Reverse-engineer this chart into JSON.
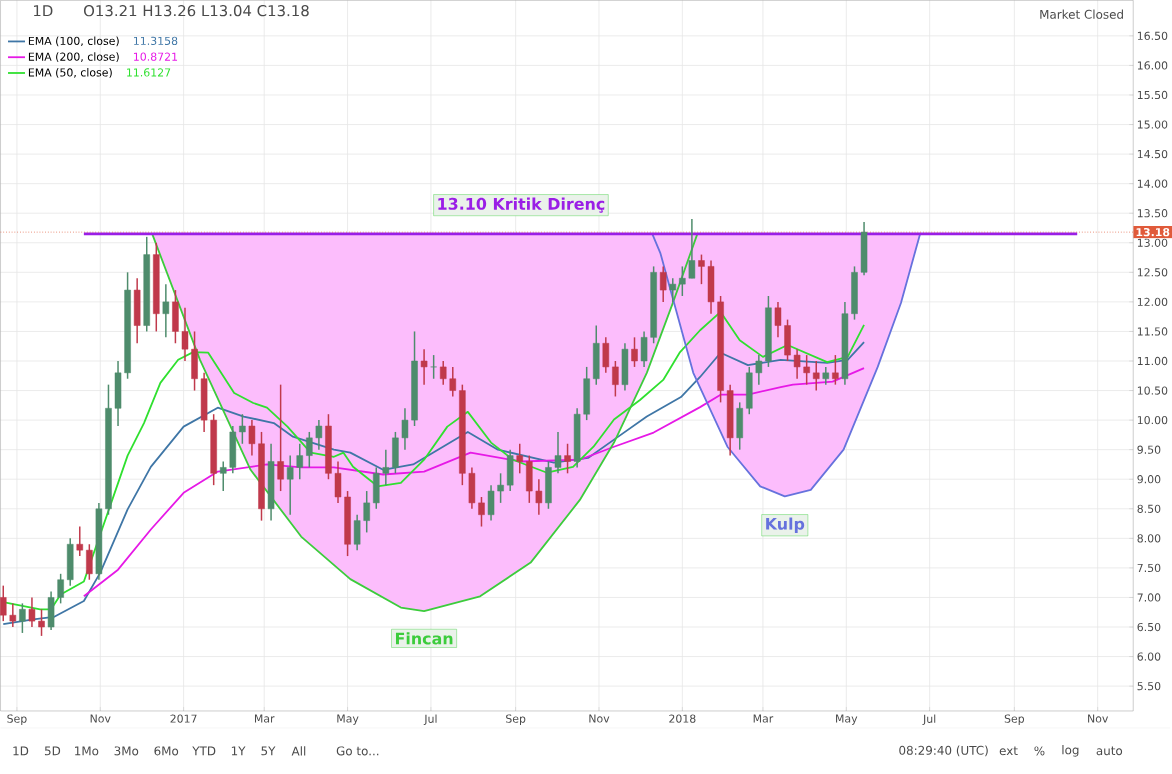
{
  "chart_data": {
    "type": "candlestick",
    "title": "1D",
    "subtitle": "O13.21  H13.26  L13.04  C13.18",
    "x": [
      "2016-08-22",
      "2016-08-29",
      "2016-09-05",
      "2016-09-12",
      "2016-09-19",
      "2016-09-26",
      "2016-10-03",
      "2016-10-10",
      "2016-10-17",
      "2016-10-24",
      "2016-10-31",
      "2016-11-07",
      "2016-11-14",
      "2016-11-21",
      "2016-11-28",
      "2016-12-05",
      "2016-12-12",
      "2016-12-19",
      "2016-12-26",
      "2017-01-02",
      "2017-01-09",
      "2017-01-16",
      "2017-01-23",
      "2017-01-30",
      "2017-02-06",
      "2017-02-13",
      "2017-02-20",
      "2017-02-27",
      "2017-03-06",
      "2017-03-13",
      "2017-03-20",
      "2017-03-27",
      "2017-04-03",
      "2017-04-10",
      "2017-04-17",
      "2017-04-24",
      "2017-05-01",
      "2017-05-08",
      "2017-05-15",
      "2017-05-22",
      "2017-05-29",
      "2017-06-05",
      "2017-06-12",
      "2017-06-19",
      "2017-06-26",
      "2017-07-03",
      "2017-07-10",
      "2017-07-17",
      "2017-07-24",
      "2017-07-31",
      "2017-08-07",
      "2017-08-14",
      "2017-08-21",
      "2017-08-28",
      "2017-09-04",
      "2017-09-11",
      "2017-09-18",
      "2017-09-25",
      "2017-10-02",
      "2017-10-09",
      "2017-10-16",
      "2017-10-23",
      "2017-10-30",
      "2017-11-06",
      "2017-11-13",
      "2017-11-20",
      "2017-11-27",
      "2017-12-04",
      "2017-12-11",
      "2017-12-18",
      "2017-12-25",
      "2018-01-01",
      "2018-01-08",
      "2018-01-15",
      "2018-01-22",
      "2018-01-29",
      "2018-02-05",
      "2018-02-12",
      "2018-02-19",
      "2018-02-26",
      "2018-03-05",
      "2018-03-12",
      "2018-03-19",
      "2018-03-26",
      "2018-04-02",
      "2018-04-09",
      "2018-04-16",
      "2018-04-23",
      "2018-04-30",
      "2018-05-07",
      "2018-05-14"
    ],
    "ohlc": [
      [
        7.0,
        7.2,
        6.6,
        6.7
      ],
      [
        6.7,
        6.9,
        6.5,
        6.6
      ],
      [
        6.6,
        6.9,
        6.4,
        6.8
      ],
      [
        6.8,
        7.0,
        6.5,
        6.6
      ],
      [
        6.6,
        6.8,
        6.35,
        6.5
      ],
      [
        6.5,
        7.1,
        6.45,
        7.0
      ],
      [
        7.0,
        7.4,
        6.9,
        7.3
      ],
      [
        7.3,
        8.0,
        7.2,
        7.9
      ],
      [
        7.9,
        8.2,
        7.7,
        7.8
      ],
      [
        7.8,
        7.9,
        7.3,
        7.4
      ],
      [
        7.4,
        8.6,
        7.3,
        8.5
      ],
      [
        8.5,
        10.6,
        8.4,
        10.2
      ],
      [
        10.2,
        11.0,
        9.9,
        10.8
      ],
      [
        10.8,
        12.5,
        10.7,
        12.2
      ],
      [
        12.2,
        12.4,
        11.3,
        11.6
      ],
      [
        11.6,
        13.1,
        11.5,
        12.8
      ],
      [
        12.8,
        13.0,
        11.5,
        11.8
      ],
      [
        11.8,
        12.3,
        11.4,
        12.0
      ],
      [
        12.0,
        12.2,
        11.3,
        11.5
      ],
      [
        11.5,
        11.9,
        11.0,
        11.2
      ],
      [
        11.2,
        11.5,
        10.5,
        10.7
      ],
      [
        10.7,
        10.8,
        9.8,
        10.0
      ],
      [
        10.0,
        10.1,
        8.9,
        9.1
      ],
      [
        9.1,
        9.3,
        8.8,
        9.2
      ],
      [
        9.2,
        9.9,
        9.1,
        9.8
      ],
      [
        9.8,
        10.1,
        9.6,
        9.9
      ],
      [
        9.9,
        10.0,
        9.4,
        9.6
      ],
      [
        9.6,
        9.8,
        8.3,
        8.5
      ],
      [
        8.5,
        9.6,
        8.3,
        9.3
      ],
      [
        9.3,
        10.6,
        8.8,
        9.0
      ],
      [
        9.0,
        9.4,
        8.4,
        9.2
      ],
      [
        9.2,
        9.6,
        9.0,
        9.4
      ],
      [
        9.4,
        9.8,
        9.2,
        9.7
      ],
      [
        9.7,
        10.0,
        9.5,
        9.9
      ],
      [
        9.9,
        10.1,
        9.0,
        9.1
      ],
      [
        9.1,
        9.3,
        8.6,
        8.7
      ],
      [
        8.7,
        8.8,
        7.7,
        7.9
      ],
      [
        7.9,
        8.4,
        7.8,
        8.3
      ],
      [
        8.3,
        8.8,
        8.1,
        8.6
      ],
      [
        8.6,
        9.2,
        8.5,
        9.1
      ],
      [
        9.1,
        9.5,
        8.9,
        9.2
      ],
      [
        9.2,
        9.8,
        9.1,
        9.7
      ],
      [
        9.7,
        10.2,
        9.5,
        10.0
      ],
      [
        10.0,
        11.5,
        9.9,
        11.0
      ],
      [
        11.0,
        11.2,
        10.6,
        10.9
      ],
      [
        10.9,
        11.1,
        10.7,
        10.9
      ],
      [
        10.9,
        11.0,
        10.6,
        10.7
      ],
      [
        10.7,
        10.9,
        10.4,
        10.5
      ],
      [
        10.5,
        10.6,
        8.9,
        9.1
      ],
      [
        9.1,
        9.2,
        8.5,
        8.6
      ],
      [
        8.6,
        8.7,
        8.2,
        8.4
      ],
      [
        8.4,
        8.9,
        8.3,
        8.8
      ],
      [
        8.8,
        9.1,
        8.6,
        8.9
      ],
      [
        8.9,
        9.5,
        8.8,
        9.4
      ],
      [
        9.4,
        9.6,
        9.1,
        9.3
      ],
      [
        9.3,
        9.4,
        8.6,
        8.8
      ],
      [
        8.8,
        9.0,
        8.4,
        8.6
      ],
      [
        8.6,
        9.3,
        8.5,
        9.2
      ],
      [
        9.2,
        9.8,
        9.1,
        9.4
      ],
      [
        9.4,
        9.6,
        9.1,
        9.3
      ],
      [
        9.3,
        10.2,
        9.2,
        10.1
      ],
      [
        10.1,
        10.9,
        10.0,
        10.7
      ],
      [
        10.7,
        11.6,
        10.6,
        11.3
      ],
      [
        11.3,
        11.4,
        10.8,
        10.9
      ],
      [
        10.9,
        11.0,
        10.4,
        10.6
      ],
      [
        10.6,
        11.3,
        10.5,
        11.2
      ],
      [
        11.2,
        11.4,
        10.9,
        11.0
      ],
      [
        11.0,
        11.5,
        10.9,
        11.4
      ],
      [
        11.4,
        12.6,
        11.3,
        12.5
      ],
      [
        12.5,
        12.6,
        12.0,
        12.2
      ],
      [
        12.2,
        12.4,
        12.0,
        12.3
      ],
      [
        12.3,
        12.6,
        12.1,
        12.4
      ],
      [
        12.4,
        13.4,
        12.4,
        12.7
      ],
      [
        12.7,
        12.8,
        12.3,
        12.6
      ],
      [
        12.6,
        12.7,
        11.8,
        12.0
      ],
      [
        12.0,
        12.1,
        10.3,
        10.5
      ],
      [
        10.5,
        10.6,
        9.4,
        9.7
      ],
      [
        9.7,
        10.3,
        9.5,
        10.2
      ],
      [
        10.2,
        10.9,
        10.1,
        10.8
      ],
      [
        10.8,
        11.1,
        10.6,
        11.0
      ],
      [
        11.0,
        12.1,
        10.9,
        11.9
      ],
      [
        11.9,
        12.0,
        11.4,
        11.6
      ],
      [
        11.6,
        11.7,
        11.0,
        11.1
      ],
      [
        11.1,
        11.2,
        10.7,
        10.9
      ],
      [
        10.9,
        11.1,
        10.6,
        10.8
      ],
      [
        10.8,
        11.0,
        10.5,
        10.7
      ],
      [
        10.7,
        10.9,
        10.6,
        10.8
      ],
      [
        10.8,
        11.1,
        10.6,
        10.7
      ],
      [
        10.7,
        12.0,
        10.6,
        11.8
      ],
      [
        11.8,
        12.6,
        11.7,
        12.5
      ],
      [
        12.5,
        13.35,
        12.45,
        13.18
      ]
    ],
    "series": [
      {
        "name": "EMA (100, close)",
        "type": "line",
        "color": "#3f76a6",
        "x": [
          "2016-08-22",
          "2016-09-13",
          "2016-09-28",
          "2016-10-20",
          "2016-11-01",
          "2016-11-21",
          "2016-12-08",
          "2017-01-01",
          "2017-01-26",
          "2017-02-14",
          "2017-03-08",
          "2017-03-22",
          "2017-04-21",
          "2017-05-03",
          "2017-05-27",
          "2017-06-18",
          "2017-07-28",
          "2017-08-19",
          "2017-09-29",
          "2017-10-24",
          "2017-11-12",
          "2017-12-06",
          "2017-12-31",
          "2018-01-14",
          "2018-01-29",
          "2018-02-18",
          "2018-03-14",
          "2018-04-17",
          "2018-05-02",
          "2018-05-14"
        ],
        "values": [
          6.55,
          6.63,
          6.67,
          6.94,
          7.42,
          8.49,
          9.21,
          9.89,
          10.21,
          10.06,
          9.95,
          9.72,
          9.5,
          9.45,
          9.16,
          9.25,
          9.8,
          9.5,
          9.28,
          9.36,
          9.67,
          10.06,
          10.39,
          10.73,
          11.14,
          10.93,
          11.02,
          10.97,
          11.02,
          11.32
        ]
      },
      {
        "name": "EMA (200, close)",
        "type": "line",
        "color": "#e619e6",
        "x": [
          "2016-10-20",
          "2016-11-14",
          "2016-12-08",
          "2017-01-01",
          "2017-01-26",
          "2017-03-03",
          "2017-03-28",
          "2017-04-21",
          "2017-05-27",
          "2017-06-26",
          "2017-07-30",
          "2017-09-05",
          "2017-10-18",
          "2017-11-12",
          "2017-12-11",
          "2018-01-14",
          "2018-01-29",
          "2018-02-18",
          "2018-03-14",
          "2018-03-23",
          "2018-04-21",
          "2018-05-14"
        ],
        "values": [
          7.02,
          7.47,
          8.15,
          8.77,
          9.13,
          9.25,
          9.2,
          9.2,
          9.08,
          9.13,
          9.45,
          9.3,
          9.33,
          9.55,
          9.79,
          10.22,
          10.43,
          10.43,
          10.56,
          10.6,
          10.65,
          10.88
        ]
      },
      {
        "name": "EMA (50, close)",
        "type": "line",
        "color": "#2fe02f",
        "x": [
          "2016-08-22",
          "2016-09-18",
          "2016-09-26",
          "2016-10-03",
          "2016-10-20",
          "2016-11-09",
          "2016-11-21",
          "2016-12-03",
          "2016-12-15",
          "2016-12-28",
          "2017-01-08",
          "2017-01-19",
          "2017-02-07",
          "2017-02-21",
          "2017-03-03",
          "2017-03-18",
          "2017-04-04",
          "2017-04-21",
          "2017-04-28",
          "2017-05-05",
          "2017-05-23",
          "2017-06-09",
          "2017-06-26",
          "2017-07-13",
          "2017-07-28",
          "2017-08-14",
          "2017-08-30",
          "2017-09-24",
          "2017-10-13",
          "2017-10-28",
          "2017-11-12",
          "2017-12-01",
          "2017-12-18",
          "2017-12-30",
          "2018-01-14",
          "2018-01-29",
          "2018-02-12",
          "2018-03-01",
          "2018-03-19",
          "2018-04-17",
          "2018-05-02",
          "2018-05-14"
        ],
        "values": [
          6.92,
          6.8,
          6.8,
          7.05,
          7.27,
          8.6,
          9.4,
          9.95,
          10.63,
          11.02,
          11.15,
          11.14,
          10.46,
          10.29,
          10.21,
          9.89,
          9.45,
          9.38,
          9.45,
          9.21,
          8.88,
          8.94,
          9.33,
          9.89,
          10.14,
          9.62,
          9.33,
          9.11,
          9.21,
          9.55,
          10.01,
          10.34,
          10.68,
          11.14,
          11.52,
          11.83,
          11.35,
          11.07,
          11.27,
          10.98,
          11.07,
          11.61
        ]
      },
      {
        "name": "Fincan",
        "type": "line",
        "color": "#3ccc3c",
        "x": [
          "2016-12-09",
          "2017-01-13",
          "2017-02-19",
          "2017-03-28",
          "2017-05-03",
          "2017-06-09",
          "2017-06-26",
          "2017-08-06",
          "2017-09-12",
          "2017-10-18",
          "2017-11-12",
          "2017-12-06",
          "2017-12-25",
          "2018-01-12"
        ],
        "values": [
          13.15,
          11.02,
          9.16,
          8.03,
          7.31,
          6.83,
          6.77,
          7.02,
          7.59,
          8.65,
          9.62,
          10.8,
          11.98,
          13.15
        ]
      },
      {
        "name": "Kulp",
        "type": "line",
        "color": "#6672dd",
        "x": [
          "2017-12-10",
          "2017-12-16",
          "2018-01-09",
          "2018-02-03",
          "2018-02-27",
          "2018-03-17",
          "2018-04-05",
          "2018-04-29",
          "2018-05-24",
          "2018-06-10",
          "2018-06-24"
        ],
        "values": [
          13.15,
          12.82,
          10.8,
          9.55,
          8.88,
          8.71,
          8.82,
          9.5,
          10.9,
          11.98,
          13.15
        ]
      },
      {
        "name": "13.10 Kritik Direnç",
        "type": "line",
        "color": "#9a1ee6",
        "x": [
          "2016-10-20",
          "2018-10-17"
        ],
        "values": [
          13.15,
          13.15
        ]
      }
    ],
    "xlim": [
      "2016-08-20",
      "2018-11-27"
    ],
    "xticks": [
      {
        "value": "2016-09-01",
        "label": "Sep"
      },
      {
        "value": "2016-11-01",
        "label": "Nov"
      },
      {
        "value": "2017-01-01",
        "label": "2017"
      },
      {
        "value": "2017-03-01",
        "label": "Mar"
      },
      {
        "value": "2017-05-01",
        "label": "May"
      },
      {
        "value": "2017-07-01",
        "label": "Jul"
      },
      {
        "value": "2017-09-01",
        "label": "Sep"
      },
      {
        "value": "2017-11-01",
        "label": "Nov"
      },
      {
        "value": "2018-01-01",
        "label": "2018"
      },
      {
        "value": "2018-03-01",
        "label": "Mar"
      },
      {
        "value": "2018-05-01",
        "label": "May"
      },
      {
        "value": "2018-07-01",
        "label": "Jul"
      },
      {
        "value": "2018-09-01",
        "label": "Sep"
      },
      {
        "value": "2018-11-01",
        "label": "Nov"
      }
    ],
    "ylim": [
      5.08,
      17.1
    ],
    "yticks": [
      {
        "value": 5.5,
        "label": "5.50"
      },
      {
        "value": 6,
        "label": "6.00"
      },
      {
        "value": 6.5,
        "label": "6.50"
      },
      {
        "value": 7,
        "label": "7.00"
      },
      {
        "value": 7.5,
        "label": "7.50"
      },
      {
        "value": 8,
        "label": "8.00"
      },
      {
        "value": 8.5,
        "label": "8.50"
      },
      {
        "value": 9,
        "label": "9.00"
      },
      {
        "value": 9.5,
        "label": "9.50"
      },
      {
        "value": 10,
        "label": "10.00"
      },
      {
        "value": 10.5,
        "label": "10.50"
      },
      {
        "value": 11,
        "label": "11.00"
      },
      {
        "value": 11.5,
        "label": "11.50"
      },
      {
        "value": 12,
        "label": "12.00"
      },
      {
        "value": 12.5,
        "label": "12.50"
      },
      {
        "value": 13,
        "label": "13.00"
      },
      {
        "value": 13.5,
        "label": "13.50"
      },
      {
        "value": 14,
        "label": "14.00"
      },
      {
        "value": 14.5,
        "label": "14.50"
      },
      {
        "value": 15,
        "label": "15.00"
      },
      {
        "value": 15.5,
        "label": "15.50"
      },
      {
        "value": 16,
        "label": "16.00"
      },
      {
        "value": 16.5,
        "label": "16.50"
      }
    ],
    "grid": true,
    "legend": "top left",
    "ref_lines": [
      {
        "axis": "y",
        "value": 13.18,
        "label": "13.18",
        "color": "#e05a3a",
        "line_style": "dotted"
      }
    ],
    "annotations": [
      "11.3158",
      "10.8721",
      "11.6127",
      "Market Closed",
      "1D",
      "5D",
      "1Mo",
      "3Mo",
      "6Mo",
      "YTD",
      "1Y",
      "5Y",
      "All",
      "Go to...",
      "08:29:40 (UTC)",
      "ext",
      "%",
      "log",
      "auto"
    ]
  }
}
